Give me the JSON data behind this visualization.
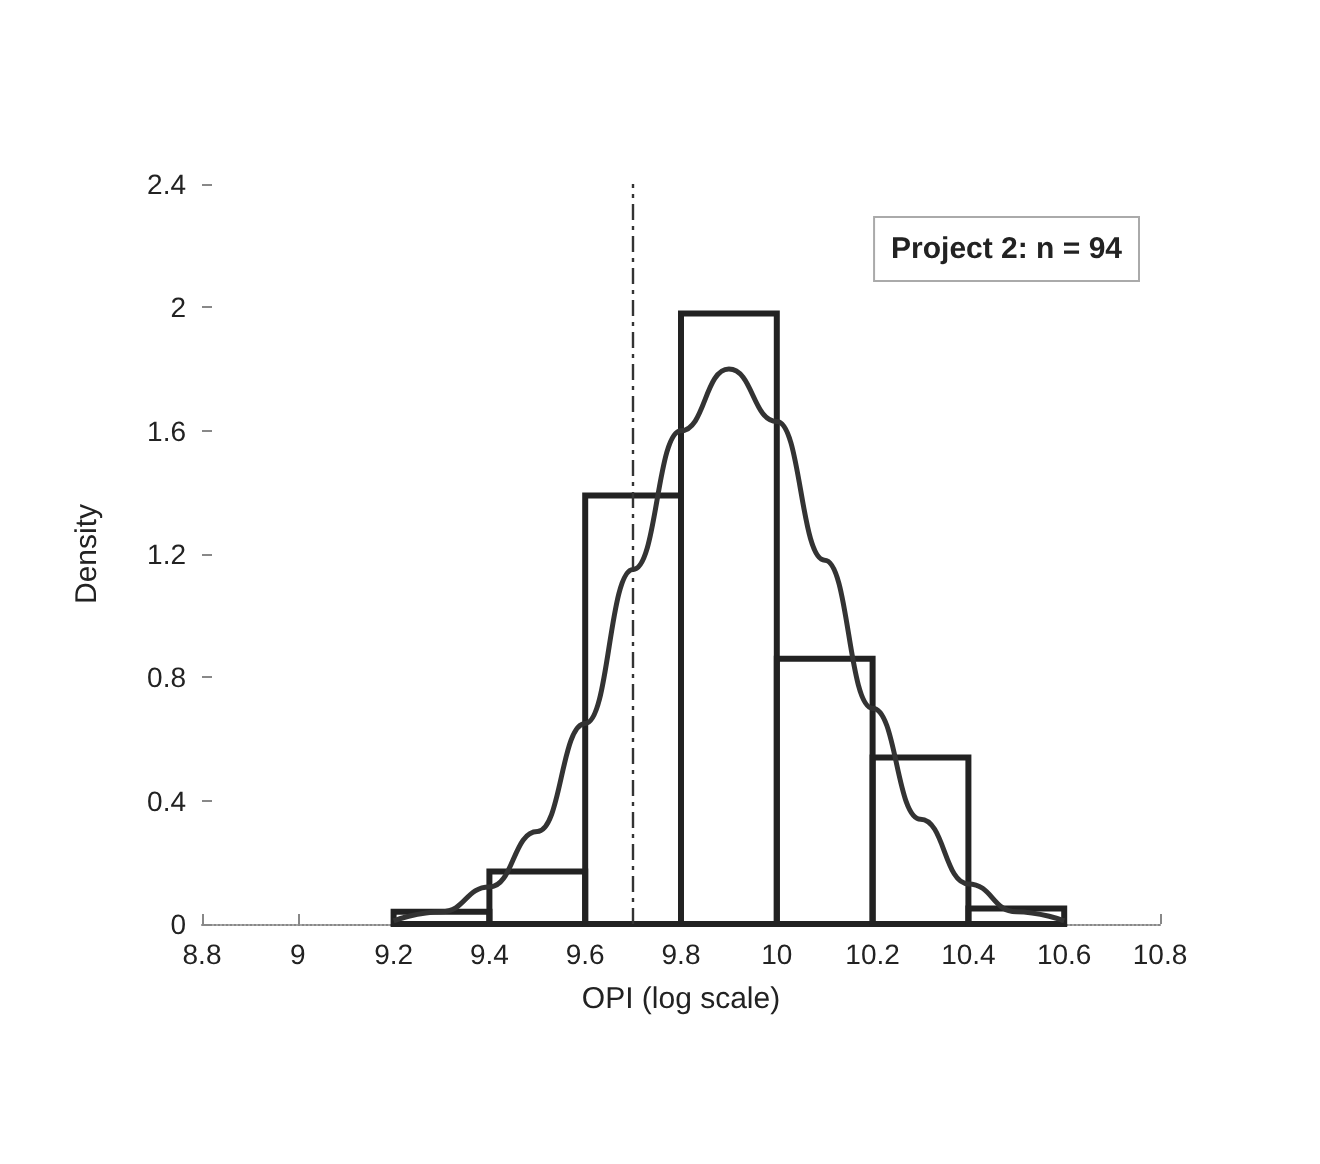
{
  "chart_data": {
    "type": "histogram",
    "xlabel": "OPI (log scale)",
    "ylabel": "Density",
    "xlim": [
      8.8,
      10.8
    ],
    "ylim": [
      0,
      2.4
    ],
    "xticks": [
      8.8,
      9,
      9.2,
      9.4,
      9.6,
      9.8,
      10,
      10.2,
      10.4,
      10.6,
      10.8
    ],
    "yticks": [
      0,
      0.4,
      0.8,
      1.2,
      1.6,
      2,
      2.4
    ],
    "series": [
      {
        "color": "#222222",
        "bins": [
          9.2,
          9.4,
          9.6,
          9.8,
          10,
          10.2,
          10.4,
          10.6
        ],
        "values": [
          0.04,
          0.17,
          1.39,
          1.98,
          0.86,
          0.54,
          0.05
        ]
      },
      {
        "type": "line",
        "color": "#333333",
        "x": [
          9.2,
          9.3,
          9.4,
          9.5,
          9.6,
          9.7,
          9.8,
          9.9,
          10.0,
          10.1,
          10.2,
          10.3,
          10.4,
          10.5,
          10.6
        ],
        "values": [
          0.01,
          0.04,
          0.12,
          0.3,
          0.65,
          1.15,
          1.6,
          1.8,
          1.63,
          1.18,
          0.7,
          0.34,
          0.13,
          0.04,
          0.01
        ]
      }
    ],
    "ref_lines": [
      {
        "axis": "x",
        "value": 9.7,
        "line_style": "dashed",
        "color": "#333333"
      }
    ],
    "annotations": [
      "Project 2: n = 94"
    ]
  }
}
